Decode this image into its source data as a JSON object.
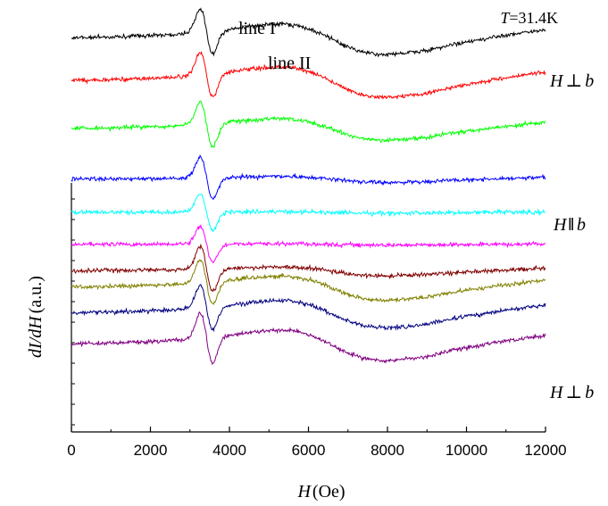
{
  "chart_data": {
    "type": "line",
    "temperature_label": "T=31.4K",
    "xlabel": {
      "var": "H",
      "unit": "(Oe)"
    },
    "ylabel": {
      "var": "dI/dH",
      "unit": "(a.u.)"
    },
    "xlim": [
      0,
      12000
    ],
    "xticks": [
      0,
      2000,
      4000,
      6000,
      8000,
      10000,
      12000
    ],
    "x_range_plotted": [
      0,
      12000
    ],
    "annotations": [
      {
        "text": "line I"
      },
      {
        "text": "line II"
      }
    ],
    "orientation_labels": [
      {
        "text": "H ⊥ b",
        "symbol": "⊥",
        "series_index": 1
      },
      {
        "text": "H ∥ b",
        "symbol": "ǁ",
        "series_index": 5
      },
      {
        "text": "H ⊥ b",
        "symbol": "⊥",
        "series_index": 9
      }
    ],
    "series": [
      {
        "color": "#000000",
        "values": {
          "start": -2.6,
          "offset_hint": 0,
          "lineI_amp": 1.0,
          "lineII_amp": 1.0
        }
      },
      {
        "color": "#ff0000",
        "values": {
          "start": -2.6,
          "offset_hint": 1,
          "lineI_amp": 1.0,
          "lineII_amp": 1.0
        }
      },
      {
        "color": "#00ff00",
        "values": {
          "start": -2.6,
          "offset_hint": 2,
          "lineI_amp": 1.0,
          "lineII_amp": 0.7
        }
      },
      {
        "color": "#0000ff",
        "values": {
          "start": -2.6,
          "offset_hint": 3,
          "lineI_amp": 0.9,
          "lineII_amp": 0.2
        }
      },
      {
        "color": "#00ffff",
        "values": {
          "start": -2.6,
          "offset_hint": 4,
          "lineI_amp": 0.8,
          "lineII_amp": 0.05
        }
      },
      {
        "color": "#ff00ff",
        "values": {
          "start": -2.6,
          "offset_hint": 5,
          "lineI_amp": 0.8,
          "lineII_amp": 0.05
        }
      },
      {
        "color": "#800000",
        "values": {
          "start": -2.6,
          "offset_hint": 6,
          "lineI_amp": 1.0,
          "lineII_amp": 0.3
        }
      },
      {
        "color": "#808000",
        "values": {
          "start": -2.6,
          "offset_hint": 7,
          "lineI_amp": 1.0,
          "lineII_amp": 0.8
        }
      },
      {
        "color": "#000080",
        "values": {
          "start": -2.6,
          "offset_hint": 8,
          "lineI_amp": 1.0,
          "lineII_amp": 0.9
        }
      },
      {
        "color": "#800080",
        "values": {
          "start": -2.6,
          "offset_hint": 9,
          "lineI_amp": 1.1,
          "lineII_amp": 1.0
        }
      }
    ]
  }
}
